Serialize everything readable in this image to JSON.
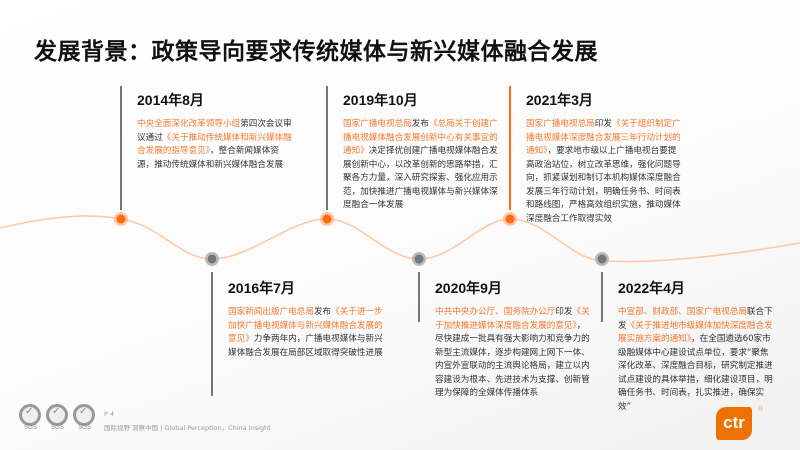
{
  "title": "发展背景：政策导向要求传统媒体与新兴媒体融合发展",
  "colors": {
    "accent": "#ff6a13",
    "grey_dot": "#777777",
    "wave": "#ffc9a3"
  },
  "events": [
    {
      "date": "2014年8月",
      "org": "中央全面深化改革领导小组",
      "pre": "第四次会议审议通过",
      "doc": "《关于推动传统媒体和新兴媒体融合发展的指导意见》",
      "rest": "，整合新闻媒体资源，推动传统媒体和新兴媒体融合发展"
    },
    {
      "date": "2016年7月",
      "org": "国家新闻出版广电总局",
      "pre": "发布",
      "doc": "《关于进一步加快广播电视媒体与新兴媒体融合发展的意见》",
      "rest": "力争两年内，广播电视媒体与新兴媒体融合发展在局部区域取得突破性进展"
    },
    {
      "date": "2019年10月",
      "org": "国家广播电视总局",
      "pre": "发布",
      "doc": "《总局关于创建广播电视媒体融合发展创新中心有关事宜的通知》",
      "rest": "决定择优创建广播电视媒体融合发展创新中心，以改革创新的思路举措，汇聚各方力量，深入研究探索、强化应用示范，加快推进广播电视媒体与新兴媒体深度融合一体发展"
    },
    {
      "date": "2020年9月",
      "org": "中共中央办公厅、国务院办公厅",
      "pre": "印发",
      "doc": "《关于加快推进媒体深度融合发展的意见》",
      "rest": "，尽快建成一批具有强大影响力和竞争力的新型主流媒体，逐步构建网上网下一体、内宣外宣联动的主流舆论格局，建立以内容建设为根本、先进技术为支撑、创新管理为保障的全媒体传播体系"
    },
    {
      "date": "2021年3月",
      "org": "国家广播电视总局",
      "pre": "印发",
      "doc": "《关于组织制定广播电视媒体深度融合发展三年行动计划的通知》",
      "rest": "，要求地市级以上广播电视台要提高政治站位，树立改革思维，强化问题导向，抓紧谋划和制订本机构媒体深度融合发展三年行动计划，明确任务书、时间表和路线图，严格高效组织实施，推动媒体深度融合工作取得实效"
    },
    {
      "date": "2022年4月",
      "org": "中宣部、财政部、国家广电视总局",
      "pre": "联合下发",
      "doc": "《关于推进地市级媒体加快深度融合发展实施方案的通知》",
      "rest": "，在全国遴选60家市级融媒体中心建设试点单位，要求“聚焦深化改革、深度融合目标，研究制定推进试点建设的具体举措，细化建设项目，明确任务书、时间表，扎实推进，确保实效”"
    }
  ],
  "footer": {
    "page": "P 4",
    "slogan": "国际视野 洞察中国 | Global Perception，China Insight",
    "badges": [
      "SGS",
      "SGS",
      "SGS"
    ],
    "logo": "ctr",
    "reg": "®"
  }
}
